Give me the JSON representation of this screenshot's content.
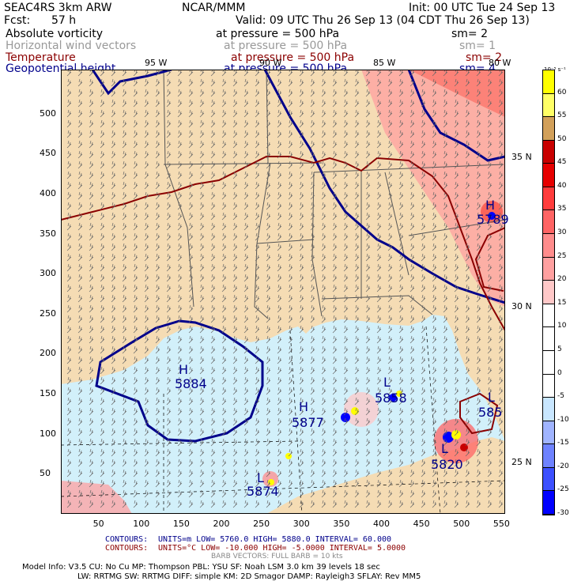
{
  "header": {
    "model": "SEAC4RS  3km ARW",
    "org": "NCAR/MMM",
    "init": "Init: 00 UTC Tue 24 Sep 13",
    "fcst_label": "Fcst:",
    "fcst_value": "57 h",
    "valid": "Valid: 09 UTC Thu 26 Sep 13 (04 CDT Thu 26 Sep 13)"
  },
  "fields": [
    {
      "name": "Absolute vorticity",
      "level": "at pressure =  500 hPa",
      "sm": "sm= 2",
      "color": "#000000"
    },
    {
      "name": "Horizontal wind vectors",
      "level": "at pressure =  500 hPa",
      "sm": "sm= 1",
      "color": "#999999"
    },
    {
      "name": "Temperature",
      "level": "at pressure =  500 hPa",
      "sm": "sm= 2",
      "color": "#8b0000"
    },
    {
      "name": "Geopotential height",
      "level": "at pressure =  500 hPa",
      "sm": "sm= 4",
      "color": "#00008b"
    }
  ],
  "axes": {
    "x_ticks": [
      "50",
      "100",
      "150",
      "200",
      "250",
      "300",
      "350",
      "400",
      "450",
      "500",
      "550"
    ],
    "y_ticks": [
      "50",
      "100",
      "150",
      "200",
      "250",
      "300",
      "350",
      "400",
      "450",
      "500"
    ],
    "lon_labels": [
      "95 W",
      "90 W",
      "85 W",
      "80 W"
    ],
    "lat_labels": [
      "35 N",
      "30 N",
      "25 N"
    ]
  },
  "map_labels": {
    "highs": [
      {
        "symbol": "H",
        "value": "5884"
      },
      {
        "symbol": "H",
        "value": "5877"
      }
    ],
    "lows": [
      {
        "symbol": "L",
        "value": "5874"
      },
      {
        "symbol": "L",
        "value": "5858"
      },
      {
        "symbol": "L",
        "value": "5820"
      },
      {
        "symbol": "H",
        "value": "5789"
      },
      {
        "symbol": "L",
        "value": "585"
      }
    ]
  },
  "colorbar": {
    "unit": "10⁻⁵ s⁻¹",
    "labels": [
      "60",
      "55",
      "50",
      "45",
      "40",
      "35",
      "30",
      "25",
      "20",
      "15",
      "10",
      "5",
      "0",
      "-5",
      "-10",
      "-15",
      "-20",
      "-25",
      "-30"
    ],
    "colors": [
      "#ffff00",
      "#ffff66",
      "#d2a05a",
      "#c80000",
      "#e60000",
      "#ff3c3c",
      "#ff6464",
      "#ff8c8c",
      "#ffa0a0",
      "#ffc8c8",
      "#ffffff",
      "#ffffff",
      "#ffffff",
      "#ffffff",
      "#c8e6ff",
      "#a0b4ff",
      "#6e82ff",
      "#3c50ff",
      "#0000ff"
    ]
  },
  "footer": {
    "contours1_label": "CONTOURS:",
    "contours1": "UNITS=m    LOW=  5760.0          HIGH=  5880.0          INTERVAL=    60.000",
    "contours2_label": "CONTOURS:",
    "contours2": "UNITS=°C   LOW= -10.000         HIGH= -5.0000         INTERVAL=    5.0000",
    "barb": "BARB VECTORS:  FULL BARB = 10 kts",
    "info1": "Model Info: V3.5       CU: No Cu      MP: Thompson     PBL: YSU       SF: Noah LSM      3.0 km   39 levels   18 sec",
    "info2": "LW: RRTMG   SW: RRTMG   DIFF: simple KM: 2D Smagor DAMP: Rayleigh3   SFLAY: Rev MM5"
  },
  "colors": {
    "land": "#f5dcb4",
    "sea": "#d2f0fa",
    "height_contour": "#00008b",
    "temp_contour": "#8b0000",
    "footer_blue": "#00008b",
    "footer_red": "#8b0000"
  }
}
